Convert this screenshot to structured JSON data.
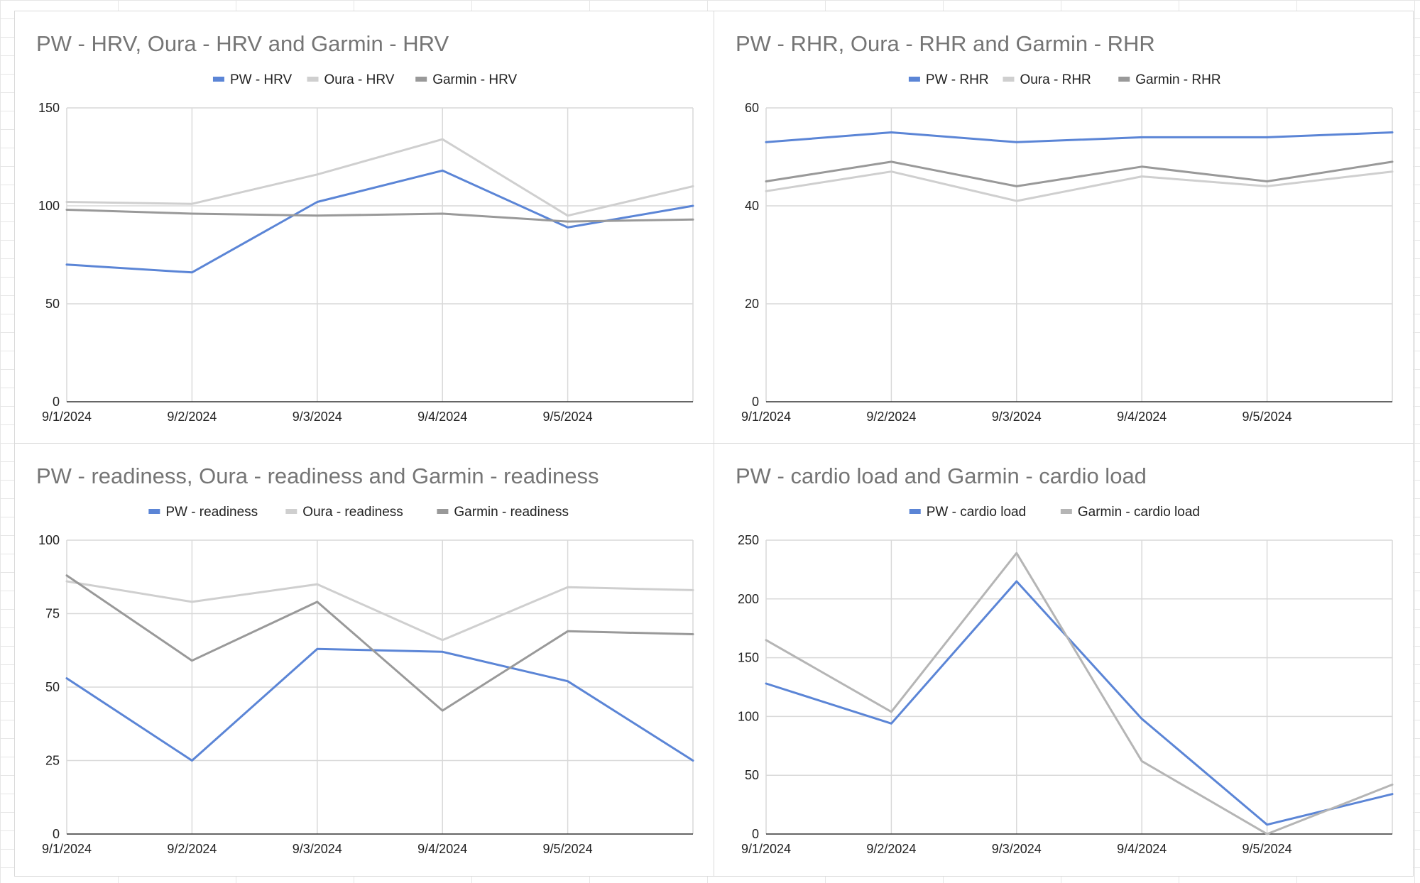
{
  "colors": {
    "blue": "#5b85d6",
    "light_gray": "#cfcfcf",
    "dark_gray": "#999999",
    "mid_gray": "#b5b5b5"
  },
  "chart_data": [
    {
      "type": "line",
      "title": "PW - HRV, Oura - HRV and Garmin - HRV",
      "x_labels": [
        "9/1/2024",
        "9/2/2024",
        "9/3/2024",
        "9/4/2024",
        "9/5/2024",
        ""
      ],
      "y_ticks": [
        "0",
        "50",
        "100",
        "150"
      ],
      "ylim": [
        0,
        150
      ],
      "legend": "top-center",
      "grid": true,
      "series": [
        {
          "name": "PW - HRV",
          "color": "#5b85d6",
          "values": [
            70,
            66,
            102,
            118,
            89,
            100
          ]
        },
        {
          "name": "Oura - HRV",
          "color": "#cfcfcf",
          "values": [
            102,
            101,
            116,
            134,
            95,
            110
          ]
        },
        {
          "name": "Garmin - HRV",
          "color": "#999999",
          "values": [
            98,
            96,
            95,
            96,
            92,
            93
          ]
        }
      ]
    },
    {
      "type": "line",
      "title": "PW - RHR, Oura -  RHR and Garmin - RHR",
      "x_labels": [
        "9/1/2024",
        "9/2/2024",
        "9/3/2024",
        "9/4/2024",
        "9/5/2024",
        ""
      ],
      "y_ticks": [
        "0",
        "20",
        "40",
        "60"
      ],
      "ylim": [
        0,
        60
      ],
      "legend": "top-center",
      "grid": true,
      "series": [
        {
          "name": "PW - RHR",
          "color": "#5b85d6",
          "values": [
            53,
            55,
            53,
            54,
            54,
            55
          ]
        },
        {
          "name": "Oura -  RHR",
          "color": "#cfcfcf",
          "values": [
            43,
            47,
            41,
            46,
            44,
            47
          ]
        },
        {
          "name": "Garmin - RHR",
          "color": "#999999",
          "values": [
            45,
            49,
            44,
            48,
            45,
            49
          ]
        }
      ]
    },
    {
      "type": "line",
      "title": "PW - readiness, Oura - readiness and Garmin - readiness",
      "x_labels": [
        "9/1/2024",
        "9/2/2024",
        "9/3/2024",
        "9/4/2024",
        "9/5/2024",
        ""
      ],
      "y_ticks": [
        "0",
        "25",
        "50",
        "75",
        "100"
      ],
      "ylim": [
        0,
        100
      ],
      "legend": "top-center",
      "grid": true,
      "series": [
        {
          "name": "PW - readiness",
          "color": "#5b85d6",
          "values": [
            53,
            25,
            63,
            62,
            52,
            25
          ]
        },
        {
          "name": "Oura - readiness",
          "color": "#cfcfcf",
          "values": [
            86,
            79,
            85,
            66,
            84,
            83
          ]
        },
        {
          "name": "Garmin - readiness",
          "color": "#999999",
          "values": [
            88,
            59,
            79,
            42,
            69,
            68
          ]
        }
      ]
    },
    {
      "type": "line",
      "title": "PW - cardio load and Garmin - cardio load",
      "x_labels": [
        "9/1/2024",
        "9/2/2024",
        "9/3/2024",
        "9/4/2024",
        "9/5/2024",
        ""
      ],
      "y_ticks": [
        "0",
        "50",
        "100",
        "150",
        "200",
        "250"
      ],
      "ylim": [
        0,
        250
      ],
      "legend": "top-center",
      "grid": true,
      "series": [
        {
          "name": "PW - cardio load",
          "color": "#5b85d6",
          "values": [
            128,
            94,
            215,
            98,
            8,
            34
          ]
        },
        {
          "name": "Garmin - cardio load",
          "color": "#b5b5b5",
          "values": [
            165,
            104,
            239,
            62,
            0,
            42
          ]
        }
      ]
    }
  ]
}
